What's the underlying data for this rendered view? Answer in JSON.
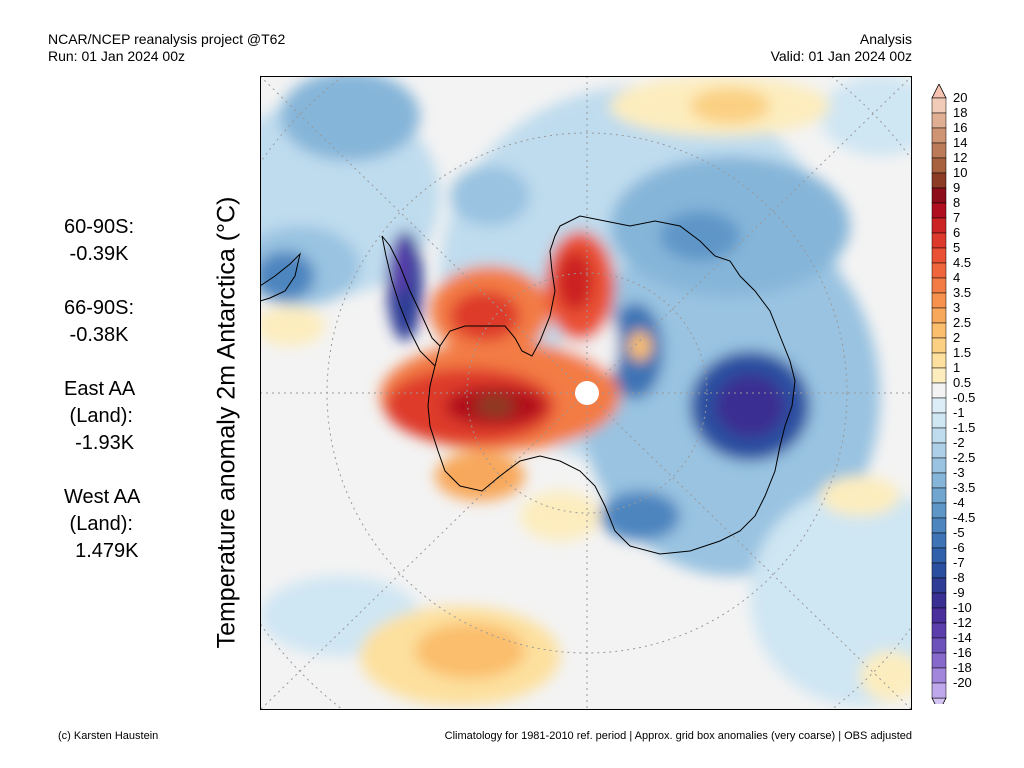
{
  "header": {
    "left_line1": "NCAR/NCEP reanalysis project @T62",
    "left_line2": "Run: 01 Jan 2024 00z",
    "right_line1": "Analysis",
    "right_line2": "Valid: 01 Jan 2024 00z"
  },
  "side_title": "Temperature anomaly 2m Antarctica (°C)",
  "stats": [
    {
      "lines": [
        "60-90S:",
        " -0.39K"
      ]
    },
    {
      "lines": [
        "66-90S:",
        " -0.38K"
      ]
    },
    {
      "lines": [
        "East AA",
        " (Land):",
        "  -1.93K"
      ]
    },
    {
      "lines": [
        "West AA",
        " (Land):",
        "  1.479K"
      ]
    }
  ],
  "colorbar": {
    "labels": [
      "20",
      "18",
      "16",
      "14",
      "12",
      "10",
      "9",
      "8",
      "7",
      "6",
      "5",
      "4.5",
      "4",
      "3.5",
      "3",
      "2.5",
      "2",
      "1.5",
      "1",
      "0.5",
      "-0.5",
      "-1",
      "-1.5",
      "-2",
      "-2.5",
      "-3",
      "-3.5",
      "-4",
      "-4.5",
      "-5",
      "-6",
      "-7",
      "-8",
      "-9",
      "-10",
      "-12",
      "-14",
      "-16",
      "-18",
      "-20"
    ],
    "colors": [
      "#f2cbb8",
      "#e0ae92",
      "#cf9473",
      "#bb7a58",
      "#a8613f",
      "#8c3b24",
      "#8e0d1b",
      "#b00f1f",
      "#cc2424",
      "#de3a2c",
      "#ea5134",
      "#f0663c",
      "#f37c44",
      "#f6924e",
      "#f8a85b",
      "#fabe6c",
      "#fbd083",
      "#fde09e",
      "#fdedbe",
      "#f3f3f3",
      "#dcedf7",
      "#cfe6f3",
      "#bfdcee",
      "#add0e8",
      "#99c3e1",
      "#85b5d9",
      "#71a6d1",
      "#5e96c8",
      "#4d85bf",
      "#3e73b5",
      "#3261ab",
      "#2a4fa0",
      "#2f3c96",
      "#3a2f92",
      "#4a2e9c",
      "#5b3dac",
      "#6e52bc",
      "#8769cc",
      "#a286dc",
      "#c0a8ec"
    ],
    "top_arrow_color": "#f6c4b0",
    "bottom_arrow_color": "#d4c4f4"
  },
  "map_palette": {
    "background": "#f3f3f3",
    "grid": "#999999",
    "coast": "#000000",
    "pole_marker": "#ffffff"
  },
  "footer": {
    "left": "(c) Karsten Haustein",
    "right": "Climatology for 1981-2010 ref. period | Approx. grid box anomalies (very coarse) | OBS adjusted"
  }
}
